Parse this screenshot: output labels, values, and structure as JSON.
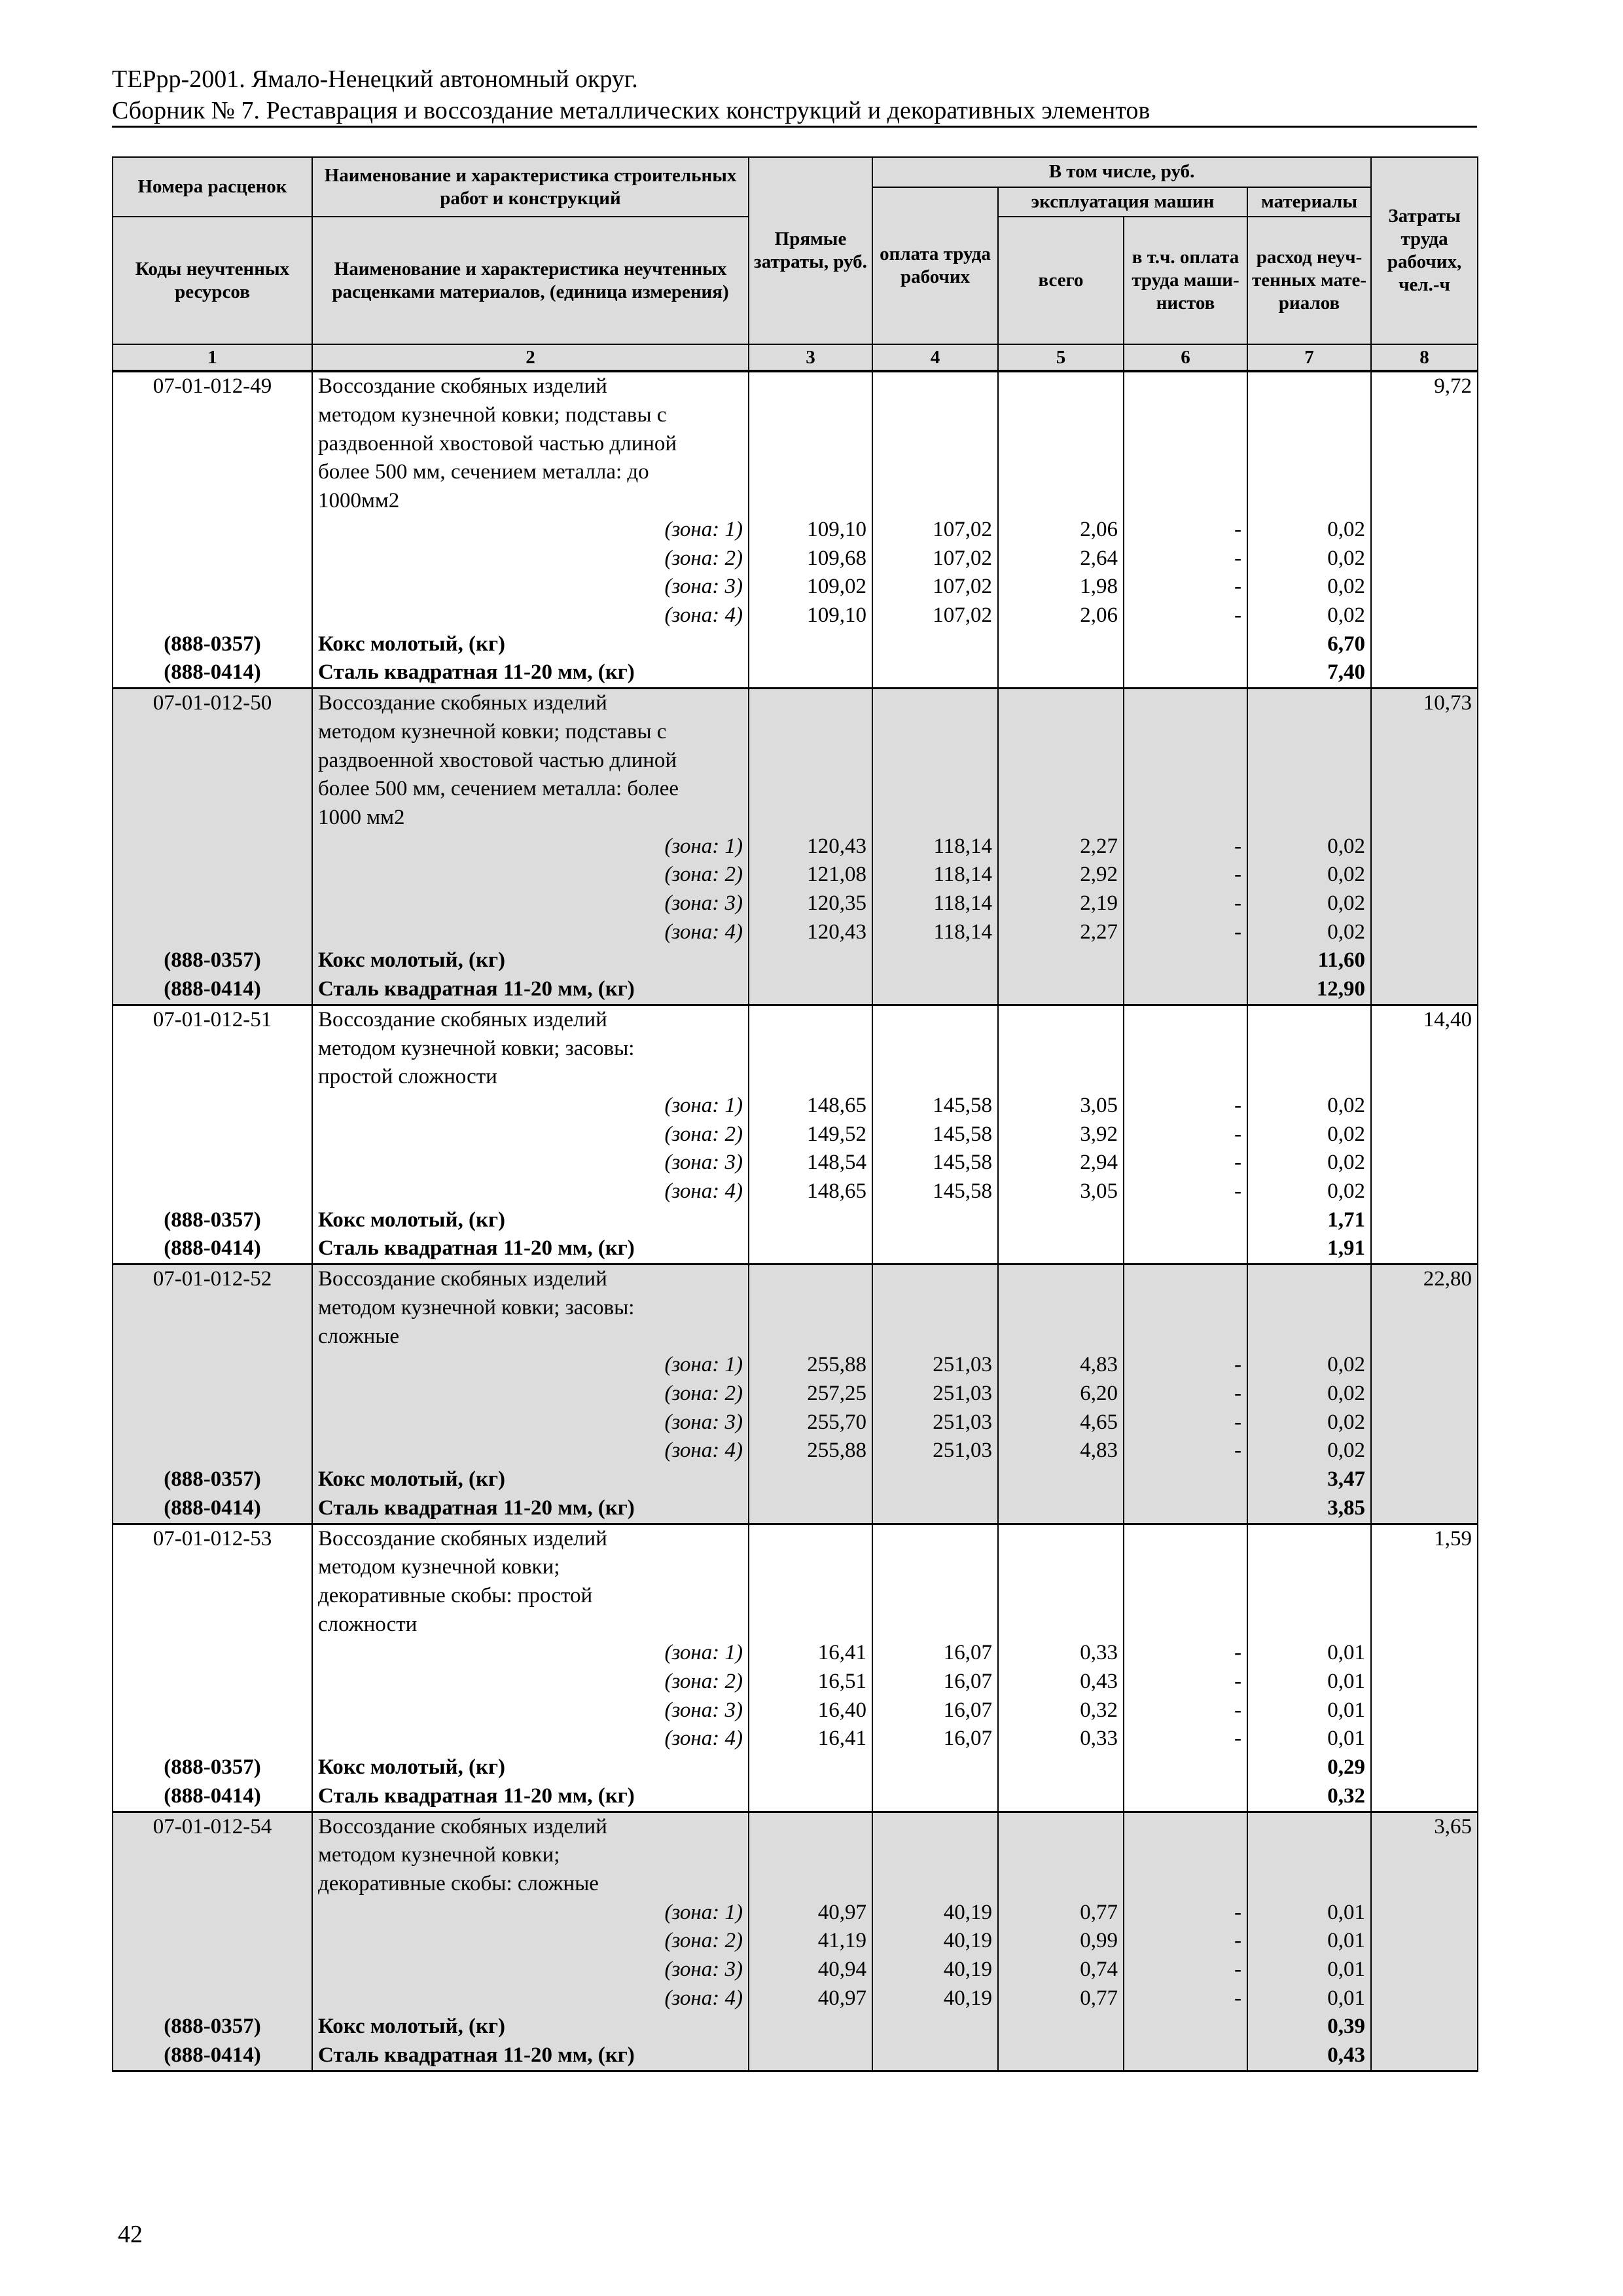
{
  "header": {
    "line1": "ТЕРрр-2001. Ямало-Ненецкий автономный округ.",
    "line2": "Сборник № 7. Реставрация и воссоздание металлических конструкций и декоративных элементов"
  },
  "table_header": {
    "col1_top": "Номера расценок",
    "col2_top": "Наименование и характеристика строительных работ и конструкций",
    "col1_bottom": "Коды неучтенных ресурсов",
    "col2_bottom": "Наименование и характеристика неучтенных расценками материалов, (единица измерения)",
    "col3": "Прямые затраты, руб.",
    "incl": "В том числе, руб.",
    "col4": "оплата труда рабочих",
    "machines": "эксплуатация машин",
    "materials": "материалы",
    "col5": "всего",
    "col6": "в т.ч. оплата труда маши-нистов",
    "col7": "расход неуч-тенных мате-риалов",
    "col8": "Затраты труда рабочих, чел.-ч",
    "numbers": [
      "1",
      "2",
      "3",
      "4",
      "5",
      "6",
      "7",
      "8"
    ]
  },
  "blocks": [
    {
      "code": "07-01-012-49",
      "desc": [
        "Воссоздание скобяных изделий",
        "методом кузнечной ковки; подставы с",
        "раздвоенной хвостовой частью длиной",
        "более 500 мм, сечением металла: до",
        "1000мм2"
      ],
      "labor": "9,72",
      "zones": [
        [
          "(зона: 1)",
          "109,10",
          "107,02",
          "2,06",
          "-",
          "0,02"
        ],
        [
          "(зона: 2)",
          "109,68",
          "107,02",
          "2,64",
          "-",
          "0,02"
        ],
        [
          "(зона: 3)",
          "109,02",
          "107,02",
          "1,98",
          "-",
          "0,02"
        ],
        [
          "(зона: 4)",
          "109,10",
          "107,02",
          "2,06",
          "-",
          "0,02"
        ]
      ],
      "resources": [
        [
          "(888-0357)",
          "Кокс молотый, (кг)",
          "6,70"
        ],
        [
          "(888-0414)",
          "Сталь квадратная 11-20 мм, (кг)",
          "7,40"
        ]
      ]
    },
    {
      "code": "07-01-012-50",
      "desc": [
        "Воссоздание скобяных изделий",
        "методом кузнечной ковки; подставы с",
        "раздвоенной хвостовой частью длиной",
        "более 500 мм, сечением металла: более",
        "1000 мм2"
      ],
      "labor": "10,73",
      "zones": [
        [
          "(зона: 1)",
          "120,43",
          "118,14",
          "2,27",
          "-",
          "0,02"
        ],
        [
          "(зона: 2)",
          "121,08",
          "118,14",
          "2,92",
          "-",
          "0,02"
        ],
        [
          "(зона: 3)",
          "120,35",
          "118,14",
          "2,19",
          "-",
          "0,02"
        ],
        [
          "(зона: 4)",
          "120,43",
          "118,14",
          "2,27",
          "-",
          "0,02"
        ]
      ],
      "resources": [
        [
          "(888-0357)",
          "Кокс молотый, (кг)",
          "11,60"
        ],
        [
          "(888-0414)",
          "Сталь квадратная 11-20 мм, (кг)",
          "12,90"
        ]
      ]
    },
    {
      "code": "07-01-012-51",
      "desc": [
        "Воссоздание скобяных изделий",
        "методом кузнечной ковки; засовы:",
        "простой сложности"
      ],
      "labor": "14,40",
      "zones": [
        [
          "(зона: 1)",
          "148,65",
          "145,58",
          "3,05",
          "-",
          "0,02"
        ],
        [
          "(зона: 2)",
          "149,52",
          "145,58",
          "3,92",
          "-",
          "0,02"
        ],
        [
          "(зона: 3)",
          "148,54",
          "145,58",
          "2,94",
          "-",
          "0,02"
        ],
        [
          "(зона: 4)",
          "148,65",
          "145,58",
          "3,05",
          "-",
          "0,02"
        ]
      ],
      "resources": [
        [
          "(888-0357)",
          "Кокс молотый, (кг)",
          "1,71"
        ],
        [
          "(888-0414)",
          "Сталь квадратная 11-20 мм, (кг)",
          "1,91"
        ]
      ]
    },
    {
      "code": "07-01-012-52",
      "desc": [
        "Воссоздание скобяных изделий",
        "методом кузнечной ковки; засовы:",
        "сложные"
      ],
      "labor": "22,80",
      "zones": [
        [
          "(зона: 1)",
          "255,88",
          "251,03",
          "4,83",
          "-",
          "0,02"
        ],
        [
          "(зона: 2)",
          "257,25",
          "251,03",
          "6,20",
          "-",
          "0,02"
        ],
        [
          "(зона: 3)",
          "255,70",
          "251,03",
          "4,65",
          "-",
          "0,02"
        ],
        [
          "(зона: 4)",
          "255,88",
          "251,03",
          "4,83",
          "-",
          "0,02"
        ]
      ],
      "resources": [
        [
          "(888-0357)",
          "Кокс молотый, (кг)",
          "3,47"
        ],
        [
          "(888-0414)",
          "Сталь квадратная 11-20 мм, (кг)",
          "3,85"
        ]
      ]
    },
    {
      "code": "07-01-012-53",
      "desc": [
        "Воссоздание скобяных изделий",
        "методом кузнечной ковки;",
        "декоративные скобы: простой",
        "сложности"
      ],
      "labor": "1,59",
      "zones": [
        [
          "(зона: 1)",
          "16,41",
          "16,07",
          "0,33",
          "-",
          "0,01"
        ],
        [
          "(зона: 2)",
          "16,51",
          "16,07",
          "0,43",
          "-",
          "0,01"
        ],
        [
          "(зона: 3)",
          "16,40",
          "16,07",
          "0,32",
          "-",
          "0,01"
        ],
        [
          "(зона: 4)",
          "16,41",
          "16,07",
          "0,33",
          "-",
          "0,01"
        ]
      ],
      "resources": [
        [
          "(888-0357)",
          "Кокс молотый, (кг)",
          "0,29"
        ],
        [
          "(888-0414)",
          "Сталь квадратная 11-20 мм, (кг)",
          "0,32"
        ]
      ]
    },
    {
      "code": "07-01-012-54",
      "desc": [
        "Воссоздание скобяных изделий",
        "методом кузнечной ковки;",
        "декоративные скобы: сложные"
      ],
      "labor": "3,65",
      "zones": [
        [
          "(зона: 1)",
          "40,97",
          "40,19",
          "0,77",
          "-",
          "0,01"
        ],
        [
          "(зона: 2)",
          "41,19",
          "40,19",
          "0,99",
          "-",
          "0,01"
        ],
        [
          "(зона: 3)",
          "40,94",
          "40,19",
          "0,74",
          "-",
          "0,01"
        ],
        [
          "(зона: 4)",
          "40,97",
          "40,19",
          "0,77",
          "-",
          "0,01"
        ]
      ],
      "resources": [
        [
          "(888-0357)",
          "Кокс молотый, (кг)",
          "0,39"
        ],
        [
          "(888-0414)",
          "Сталь квадратная 11-20 мм, (кг)",
          "0,43"
        ]
      ]
    }
  ],
  "shading_color": "#dcdcdc",
  "page_number": "42"
}
